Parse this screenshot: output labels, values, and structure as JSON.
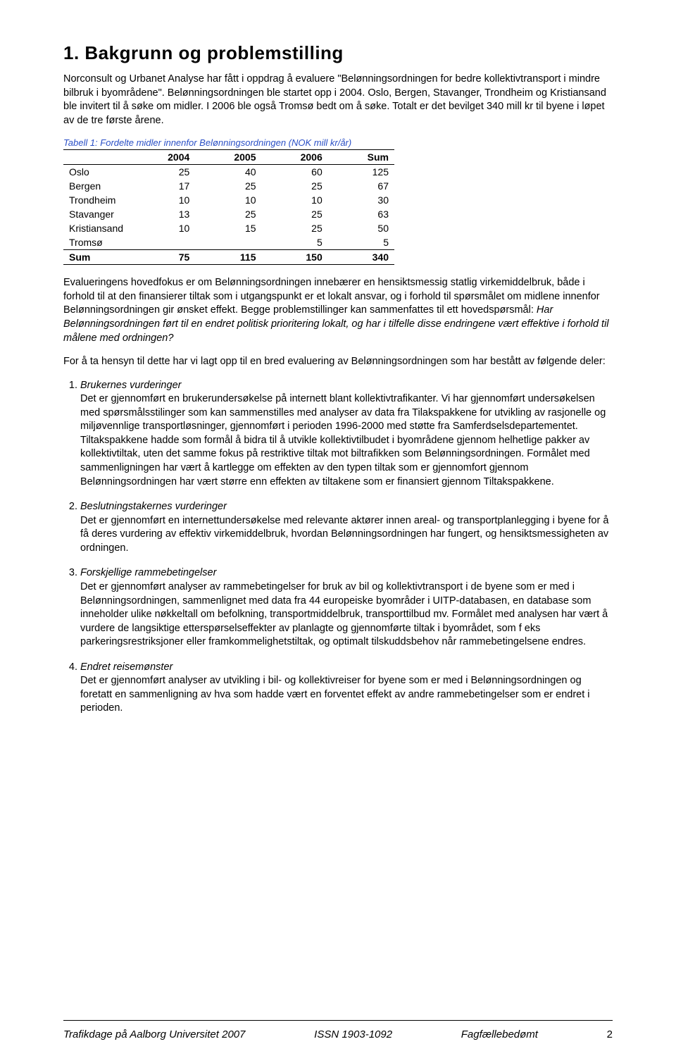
{
  "title": "1. Bakgrunn og problemstilling",
  "para1": "Norconsult og Urbanet Analyse har fått i oppdrag å evaluere \"Belønningsordningen for bedre kollektivtransport i mindre bilbruk i byområdene\". Belønningsordningen ble startet opp i 2004. Oslo, Bergen, Stavanger, Trondheim og Kristiansand ble invitert til å søke om midler. I 2006 ble også Tromsø bedt om å søke. Totalt er det bevilget 340 mill kr til byene i løpet av de tre første årene.",
  "table": {
    "caption": "Tabell 1: Fordelte midler innenfor Belønningsordningen (NOK mill kr/år)",
    "columns": [
      "",
      "2004",
      "2005",
      "2006",
      "Sum"
    ],
    "rows": [
      [
        "Oslo",
        "25",
        "40",
        "60",
        "125"
      ],
      [
        "Bergen",
        "17",
        "25",
        "25",
        "67"
      ],
      [
        "Trondheim",
        "10",
        "10",
        "10",
        "30"
      ],
      [
        "Stavanger",
        "13",
        "25",
        "25",
        "63"
      ],
      [
        "Kristiansand",
        "10",
        "15",
        "25",
        "50"
      ],
      [
        "Tromsø",
        "",
        "",
        "5",
        "5"
      ]
    ],
    "sumrow": [
      "Sum",
      "75",
      "115",
      "150",
      "340"
    ]
  },
  "para2a": "Evalueringens hovedfokus er om Belønningsordningen innebærer en hensiktsmessig statlig virkemiddelbruk, både i forhold til at den finansierer tiltak som i utgangspunkt er et lokalt ansvar, og i forhold til spørsmålet om midlene innenfor Belønningsordningen gir ønsket effekt. Begge problemstillinger kan sammenfattes til ett hovedspørsmål: ",
  "para2b": "Har Belønningsordningen ført til en endret politisk prioritering lokalt, og har i tilfelle disse endringene vært effektive i forhold til målene med ordningen?",
  "para3": "For å ta hensyn til dette har vi lagt opp til en bred evaluering av Belønningsordningen som har bestått av følgende deler:",
  "items": [
    {
      "title": "Brukernes vurderinger",
      "text": "Det er gjennomført en brukerundersøkelse på internett blant kollektivtrafikanter. Vi har gjennomført undersøkelsen med spørsmålsstilinger som kan sammenstilles med analyser av data fra Tilakspakkene for utvikling av rasjonelle og miljøvennlige transportløsninger, gjennomført i perioden 1996-2000 med støtte fra Samferdselsdepartementet. Tiltakspakkene hadde som formål å bidra til å utvikle kollektivtilbudet i byområdene gjennom helhetlige pakker av kollektivtiltak, uten det samme fokus på restriktive tiltak mot biltrafikken som Belønningsordningen. Formålet med sammenligningen har vært å kartlegge om effekten av den typen tiltak som er gjennomfort gjennom Belønningsordningen har vært større enn effekten av tiltakene som er finansiert gjennom Tiltakspakkene."
    },
    {
      "title": "Beslutningstakernes vurderinger",
      "text": "Det er gjennomført en internettundersøkelse med relevante aktører innen areal- og transportplanlegging i byene for å få deres vurdering av effektiv virkemiddelbruk, hvordan Belønningsordningen har fungert, og hensiktsmessigheten av ordningen."
    },
    {
      "title": "Forskjellige rammebetingelser",
      "text": "Det er gjennomført analyser av rammebetingelser for bruk av bil og kollektivtransport i de byene som er med i Belønningsordningen, sammenlignet med data fra 44 europeiske byområder i UITP-databasen, en database som inneholder ulike nøkkeltall om befolkning, transportmiddelbruk, transporttilbud mv. Formålet med analysen har vært å vurdere de langsiktige etterspørselseffekter av planlagte og gjennomførte tiltak i byområdet, som f eks parkeringsrestriksjoner eller framkommelighetstiltak, og optimalt tilskuddsbehov når rammebetingelsene endres."
    },
    {
      "title": "Endret reisemønster",
      "text": "Det er gjennomført analyser av utvikling i bil- og kollektivreiser for byene som er med i Belønningsordningen og foretatt en sammenligning av hva som hadde vært en forventet effekt av andre rammebetingelser som er endret i perioden."
    }
  ],
  "footer": {
    "left": "Trafikdage på Aalborg Universitet 2007",
    "mid": "ISSN 1903-1092",
    "right": "Fagfællebedømt",
    "page": "2"
  }
}
